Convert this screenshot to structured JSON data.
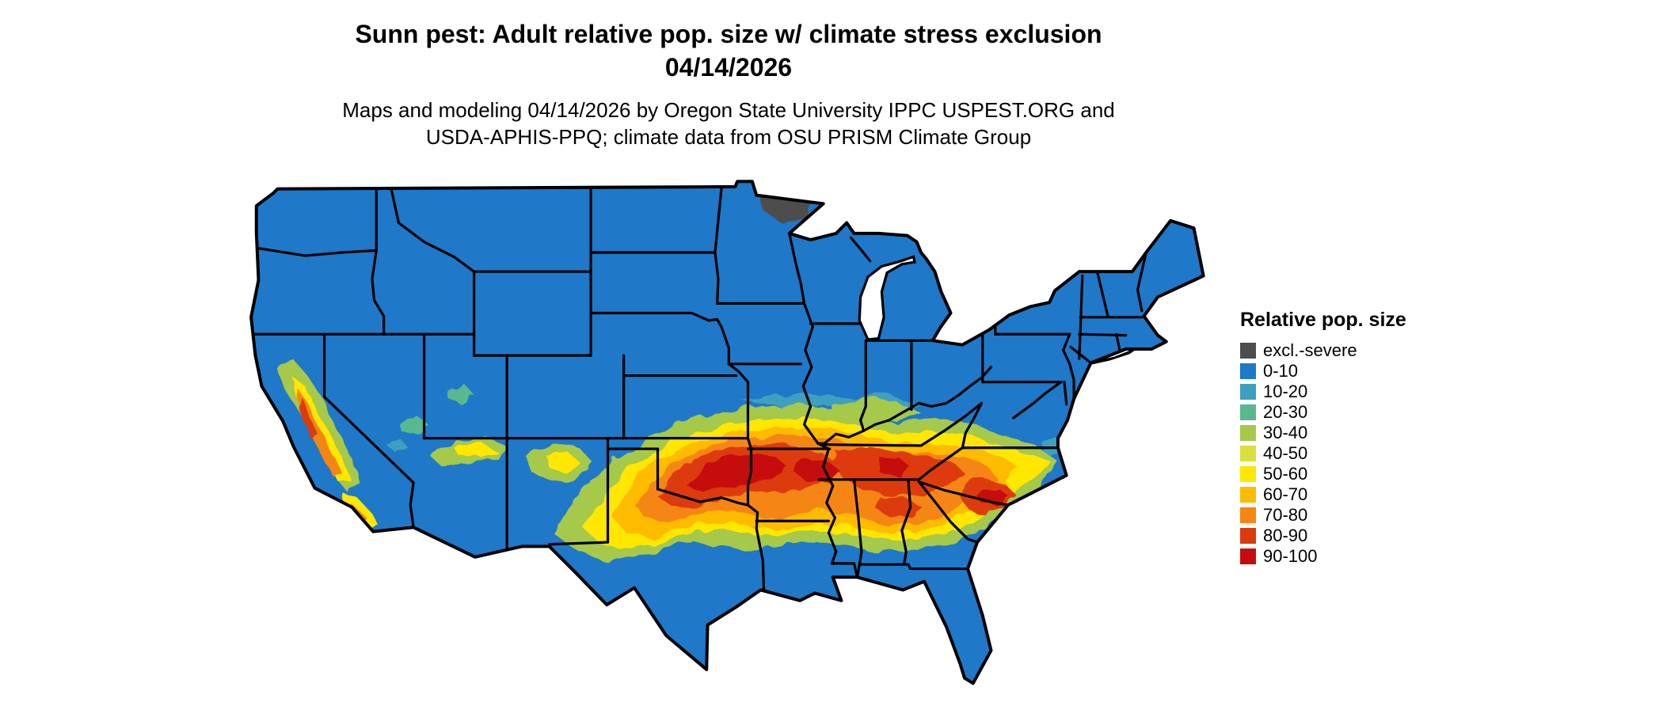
{
  "header": {
    "title": "Sunn pest: Adult relative pop. size w/ climate stress exclusion",
    "date": "04/14/2026",
    "subtitle_line1": "Maps and modeling 04/14/2026 by Oregon State University IPPC USPEST.ORG and",
    "subtitle_line2": "USDA-APHIS-PPQ; climate data from OSU PRISM Climate Group"
  },
  "legend": {
    "title": "Relative pop. size",
    "items": [
      {
        "key": "excl",
        "label": "excl.-severe",
        "color": "#4d4d4d"
      },
      {
        "key": "r0_10",
        "label": "0-10",
        "color": "#1f78c8"
      },
      {
        "key": "r10_20",
        "label": "10-20",
        "color": "#3f9fc0"
      },
      {
        "key": "r20_30",
        "label": "20-30",
        "color": "#5ab88e"
      },
      {
        "key": "r30_40",
        "label": "30-40",
        "color": "#a6c84c"
      },
      {
        "key": "r40_50",
        "label": "40-50",
        "color": "#d9e03e"
      },
      {
        "key": "r50_60",
        "label": "50-60",
        "color": "#ffe700"
      },
      {
        "key": "r60_70",
        "label": "60-70",
        "color": "#ffbb00"
      },
      {
        "key": "r70_80",
        "label": "70-80",
        "color": "#f58613"
      },
      {
        "key": "r80_90",
        "label": "80-90",
        "color": "#dd3a10"
      },
      {
        "key": "r90_100",
        "label": "90-100",
        "color": "#c50d10"
      }
    ]
  },
  "map": {
    "region_label": "Continental United States",
    "base_fill_key": "r0_10",
    "border_color": "#000000"
  }
}
